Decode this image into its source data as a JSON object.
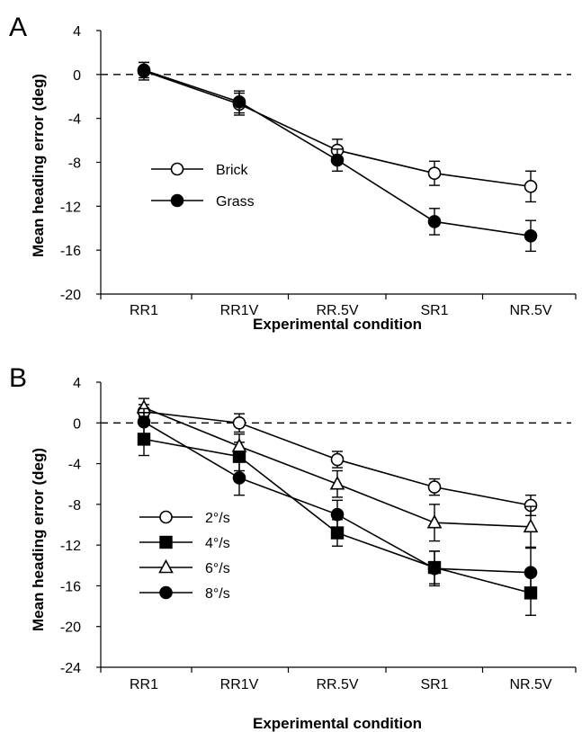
{
  "chart_data": [
    {
      "panel": "A",
      "type": "line",
      "xlabel": "Experimental condition",
      "ylabel": "Mean heading error (deg)",
      "categories": [
        "RR1",
        "RR1V",
        "RR.5V",
        "SR1",
        "NR.5V"
      ],
      "ylim": [
        -20,
        4
      ],
      "yticks": [
        "4",
        "0",
        "-4",
        "-8",
        "-12",
        "-16",
        "-20"
      ],
      "ytick_values": [
        4,
        0,
        -4,
        -8,
        -12,
        -16,
        -20
      ],
      "reference_line": 0,
      "legend_position": "middle-left",
      "series": [
        {
          "name": "Brick",
          "marker": "circle-open",
          "values": [
            0.3,
            -2.7,
            -6.9,
            -9.0,
            -10.2
          ],
          "errors": [
            0.8,
            1.0,
            1.0,
            1.1,
            1.4
          ]
        },
        {
          "name": "Grass",
          "marker": "circle-filled",
          "values": [
            0.4,
            -2.5,
            -7.8,
            -13.4,
            -14.7
          ],
          "errors": [
            0.7,
            1.0,
            1.0,
            1.2,
            1.4
          ]
        }
      ]
    },
    {
      "panel": "B",
      "type": "line",
      "xlabel": "Experimental condition",
      "ylabel": "Mean heading error (deg)",
      "categories": [
        "RR1",
        "RR1V",
        "RR.5V",
        "SR1",
        "NR.5V"
      ],
      "ylim": [
        -24,
        4
      ],
      "yticks": [
        "4",
        "0",
        "-4",
        "-8",
        "-12",
        "-16",
        "-20",
        "-24"
      ],
      "ytick_values": [
        4,
        0,
        -4,
        -8,
        -12,
        -16,
        -20,
        -24
      ],
      "reference_line": 0,
      "legend_position": "bottom-left",
      "series": [
        {
          "name": "2°/s",
          "marker": "circle-open",
          "values": [
            1.1,
            0.0,
            -3.6,
            -6.3,
            -8.1
          ],
          "errors": [
            0.7,
            0.9,
            0.8,
            0.8,
            1.0
          ]
        },
        {
          "name": "4°/s",
          "marker": "square-filled",
          "values": [
            -1.6,
            -3.3,
            -10.8,
            -14.2,
            -16.7
          ],
          "errors": [
            1.6,
            1.4,
            1.3,
            1.6,
            2.2
          ]
        },
        {
          "name": "6°/s",
          "marker": "triangle-open",
          "values": [
            1.5,
            -2.3,
            -6.0,
            -9.8,
            -10.2
          ],
          "errors": [
            0.9,
            1.2,
            1.3,
            1.8,
            2.0
          ]
        },
        {
          "name": "8°/s",
          "marker": "circle-filled",
          "values": [
            0.1,
            -5.4,
            -9.0,
            -14.3,
            -14.7
          ],
          "errors": [
            1.3,
            1.7,
            1.4,
            1.7,
            2.4
          ]
        }
      ]
    }
  ]
}
